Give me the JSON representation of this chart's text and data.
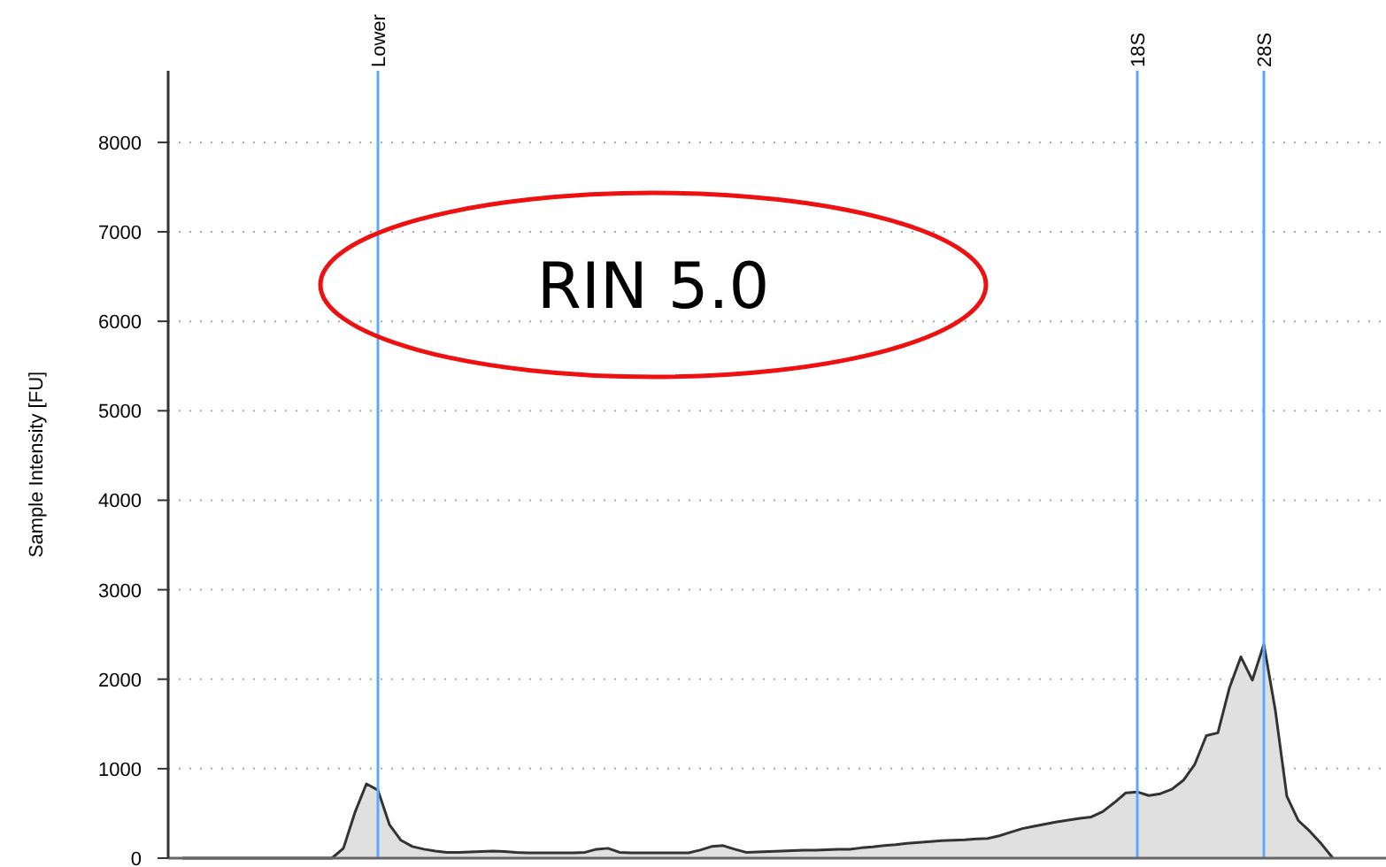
{
  "chart_data": {
    "type": "area",
    "ylabel": "Sample Intensity [FU]",
    "annotations": [
      "RIN 5.0"
    ],
    "categories": [
      null,
      null,
      null,
      null,
      null,
      null,
      null,
      null,
      null,
      null,
      null,
      null,
      null,
      null,
      null,
      null,
      null,
      "Lower",
      null,
      null,
      null,
      null,
      null,
      null,
      null,
      null,
      null,
      null,
      null,
      null,
      null,
      null,
      null,
      null,
      null,
      null,
      null,
      null,
      null,
      null,
      null,
      null,
      null,
      null,
      null,
      null,
      null,
      null,
      null,
      null,
      null,
      null,
      null,
      null,
      null,
      null,
      null,
      null,
      null,
      null,
      null,
      null,
      null,
      null,
      null,
      null,
      null,
      null,
      null,
      null,
      null,
      null,
      null,
      null,
      null,
      null,
      null,
      null,
      null,
      null,
      null,
      null,
      null,
      "18S",
      null,
      null,
      null,
      null,
      null,
      null,
      null,
      null,
      null,
      null,
      "28S",
      null,
      null,
      null,
      null,
      null,
      null
    ],
    "series": [
      {
        "color": "#333333",
        "values": [
          0,
          0,
          0,
          0,
          0,
          0,
          0,
          0,
          0,
          0,
          0,
          0,
          0,
          0,
          110,
          510,
          830,
          760,
          375,
          200,
          130,
          100,
          80,
          65,
          65,
          70,
          75,
          80,
          75,
          65,
          60,
          60,
          60,
          60,
          60,
          65,
          100,
          110,
          65,
          60,
          60,
          60,
          60,
          60,
          60,
          90,
          130,
          140,
          100,
          65,
          70,
          75,
          80,
          85,
          90,
          90,
          95,
          100,
          100,
          115,
          125,
          140,
          150,
          165,
          175,
          185,
          195,
          200,
          205,
          215,
          220,
          250,
          290,
          330,
          355,
          380,
          405,
          425,
          445,
          460,
          520,
          620,
          730,
          740,
          700,
          720,
          770,
          870,
          1050,
          1370,
          1400,
          1900,
          2250,
          1990,
          2390,
          1650,
          690,
          420,
          300,
          160,
          0
        ]
      }
    ],
    "ylim": [
      0,
      8800
    ],
    "yticks": [
      0,
      1000,
      2000,
      3000,
      4000,
      5000,
      6000,
      7000,
      8000
    ],
    "grid": "y",
    "ref_lines": [
      {
        "axis": "x",
        "value": "Lower",
        "color": "#5aa9ff"
      },
      {
        "axis": "x",
        "value": "18S",
        "color": "#5aa9ff"
      },
      {
        "axis": "x",
        "value": "28S",
        "color": "#5aa9ff"
      }
    ]
  }
}
